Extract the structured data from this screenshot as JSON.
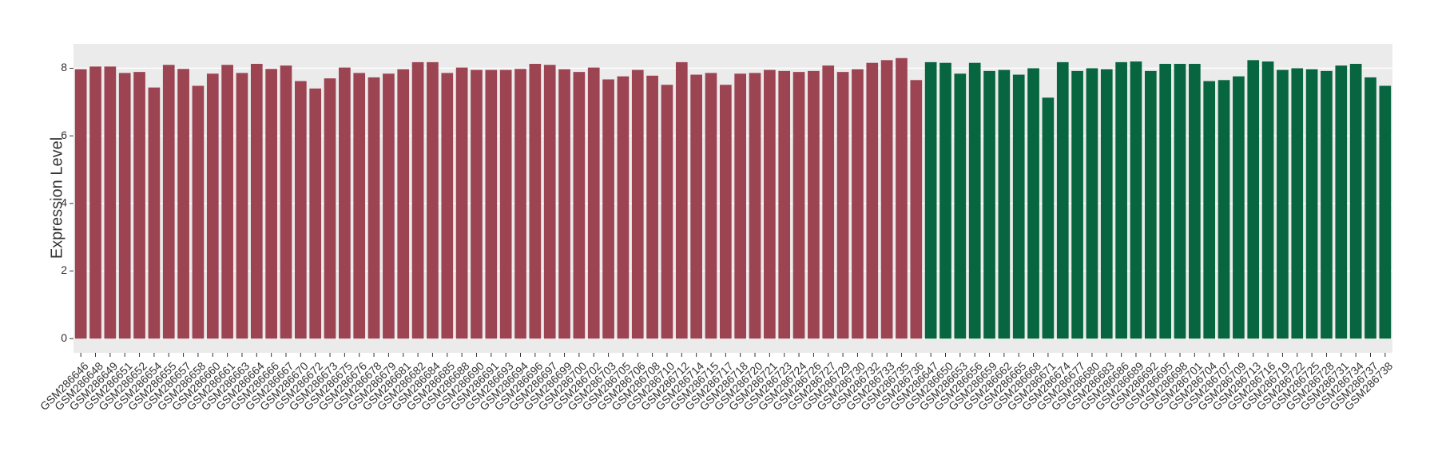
{
  "chart_data": {
    "type": "bar",
    "y_label": "Expression Level",
    "categories": [
      "GSM286646",
      "GSM286648",
      "GSM286649",
      "GSM286651",
      "GSM286652",
      "GSM286654",
      "GSM286655",
      "GSM286657",
      "GSM286658",
      "GSM286660",
      "GSM286661",
      "GSM286663",
      "GSM286664",
      "GSM286666",
      "GSM286667",
      "GSM286670",
      "GSM286672",
      "GSM286673",
      "GSM286675",
      "GSM286676",
      "GSM286678",
      "GSM286679",
      "GSM286681",
      "GSM286682",
      "GSM286684",
      "GSM286685",
      "GSM286688",
      "GSM286690",
      "GSM286691",
      "GSM286693",
      "GSM286694",
      "GSM286696",
      "GSM286697",
      "GSM286699",
      "GSM286700",
      "GSM286702",
      "GSM286703",
      "GSM286705",
      "GSM286706",
      "GSM286708",
      "GSM286710",
      "GSM286712",
      "GSM286714",
      "GSM286715",
      "GSM286717",
      "GSM286718",
      "GSM286720",
      "GSM286721",
      "GSM286723",
      "GSM286724",
      "GSM286726",
      "GSM286727",
      "GSM286729",
      "GSM286730",
      "GSM286732",
      "GSM286733",
      "GSM286735",
      "GSM286736",
      "GSM286647",
      "GSM286650",
      "GSM286653",
      "GSM286656",
      "GSM286659",
      "GSM286662",
      "GSM286665",
      "GSM286668",
      "GSM286671",
      "GSM286674",
      "GSM286677",
      "GSM286680",
      "GSM286683",
      "GSM286686",
      "GSM286689",
      "GSM286692",
      "GSM286695",
      "GSM286698",
      "GSM286701",
      "GSM286704",
      "GSM286707",
      "GSM286709",
      "GSM286713",
      "GSM286716",
      "GSM286719",
      "GSM286722",
      "GSM286725",
      "GSM286728",
      "GSM286731",
      "GSM286734",
      "GSM286737",
      "GSM286738"
    ],
    "values": [
      7.97,
      8.05,
      8.05,
      7.86,
      7.89,
      7.43,
      8.1,
      7.98,
      7.48,
      7.84,
      8.1,
      7.86,
      8.13,
      7.98,
      8.08,
      7.62,
      7.4,
      7.7,
      8.02,
      7.86,
      7.73,
      7.84,
      7.97,
      8.18,
      8.18,
      7.86,
      8.02,
      7.95,
      7.95,
      7.95,
      7.98,
      8.13,
      8.1,
      7.97,
      7.89,
      8.02,
      7.67,
      7.76,
      7.95,
      7.78,
      7.51,
      8.18,
      7.81,
      7.86,
      7.51,
      7.84,
      7.86,
      7.95,
      7.92,
      7.89,
      7.92,
      8.08,
      7.89,
      7.97,
      8.16,
      8.24,
      8.3,
      7.65,
      8.18,
      8.16,
      7.84,
      8.16,
      7.92,
      7.95,
      7.81,
      8.0,
      7.13,
      8.18,
      7.92,
      8.0,
      7.97,
      8.18,
      8.2,
      7.92,
      8.13,
      8.13,
      8.13,
      7.62,
      7.65,
      7.76,
      8.24,
      8.2,
      7.95,
      8.0,
      7.97,
      7.92,
      8.08,
      8.13,
      7.73,
      7.48
    ],
    "colors": [
      "#9c4452",
      "#9c4452",
      "#9c4452",
      "#9c4452",
      "#9c4452",
      "#9c4452",
      "#9c4452",
      "#9c4452",
      "#9c4452",
      "#9c4452",
      "#9c4452",
      "#9c4452",
      "#9c4452",
      "#9c4452",
      "#9c4452",
      "#9c4452",
      "#9c4452",
      "#9c4452",
      "#9c4452",
      "#9c4452",
      "#9c4452",
      "#9c4452",
      "#9c4452",
      "#9c4452",
      "#9c4452",
      "#9c4452",
      "#9c4452",
      "#9c4452",
      "#9c4452",
      "#9c4452",
      "#9c4452",
      "#9c4452",
      "#9c4452",
      "#9c4452",
      "#9c4452",
      "#9c4452",
      "#9c4452",
      "#9c4452",
      "#9c4452",
      "#9c4452",
      "#9c4452",
      "#9c4452",
      "#9c4452",
      "#9c4452",
      "#9c4452",
      "#9c4452",
      "#9c4452",
      "#9c4452",
      "#9c4452",
      "#9c4452",
      "#9c4452",
      "#9c4452",
      "#9c4452",
      "#9c4452",
      "#9c4452",
      "#9c4452",
      "#9c4452",
      "#9c4452",
      "#07663f",
      "#07663f",
      "#07663f",
      "#07663f",
      "#07663f",
      "#07663f",
      "#07663f",
      "#07663f",
      "#07663f",
      "#07663f",
      "#07663f",
      "#07663f",
      "#07663f",
      "#07663f",
      "#07663f",
      "#07663f",
      "#07663f",
      "#07663f",
      "#07663f",
      "#07663f",
      "#07663f",
      "#07663f",
      "#07663f",
      "#07663f",
      "#07663f",
      "#07663f",
      "#07663f",
      "#07663f",
      "#07663f",
      "#07663f",
      "#07663f",
      "#07663f"
    ],
    "ylim": [
      -0.42,
      8.72
    ],
    "yticks": [
      0,
      2,
      4,
      6,
      8
    ],
    "grid": true
  }
}
